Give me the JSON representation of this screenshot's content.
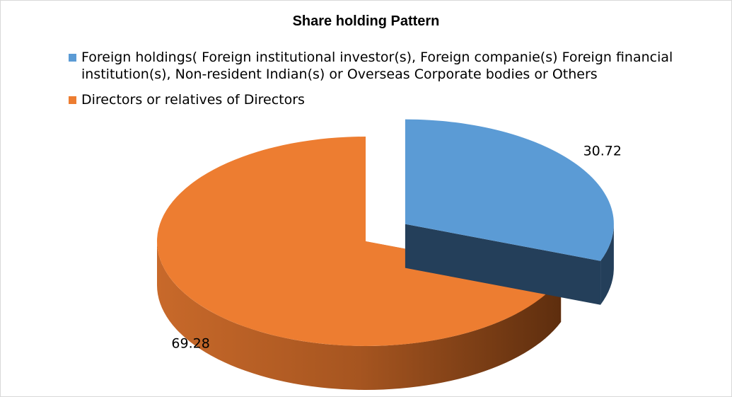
{
  "chart_data": {
    "type": "pie",
    "style": "3d-exploded",
    "title": "Share holding  Pattern",
    "legend_position": "top",
    "slices": [
      {
        "name": "Foreign holdings( Foreign institutional investor(s), Foreign companie(s) Foreign financial institution(s), Non-resident Indian(s) or Overseas Corporate bodies or Others",
        "value": 30.72,
        "label": "30.72",
        "color": "#5B9BD5",
        "side_color": "#243F5A"
      },
      {
        "name": "Directors or relatives of Directors",
        "value": 69.28,
        "label": "69.28",
        "color": "#ED7D31",
        "side_color": "#B85E22"
      }
    ]
  }
}
